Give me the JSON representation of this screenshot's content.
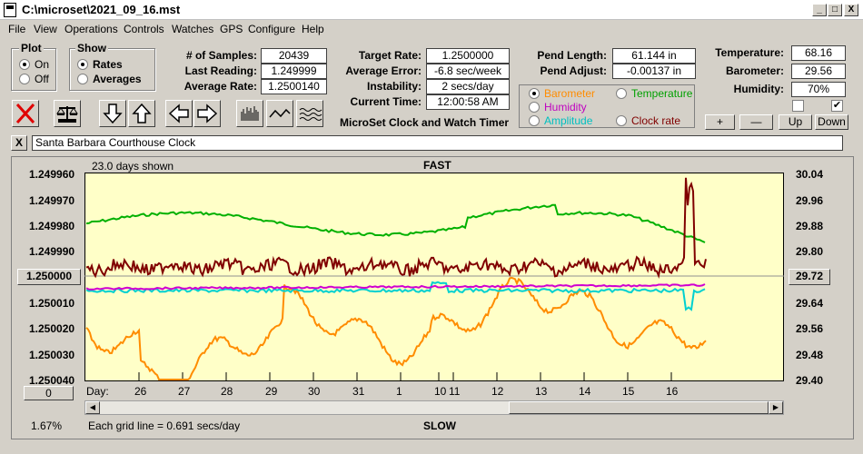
{
  "window": {
    "title": "C:\\microset\\2021_09_16.mst",
    "min": "_",
    "max": "□",
    "close": "X"
  },
  "menu": [
    "File",
    "View",
    "Operations",
    "Controls",
    "Watches",
    "GPS",
    "Configure",
    "Help"
  ],
  "plot_group": {
    "label": "Plot",
    "on": "On",
    "off": "Off",
    "selected": "On"
  },
  "show_group": {
    "label": "Show",
    "rates": "Rates",
    "averages": "Averages",
    "selected": "Rates"
  },
  "stats": {
    "samples_label": "# of Samples:",
    "samples": "20439",
    "last_label": "Last Reading:",
    "last": "1.249999",
    "avg_rate_label": "Average Rate:",
    "avg_rate": "1.2500140",
    "target_label": "Target Rate:",
    "target": "1.2500000",
    "avg_err_label": "Average Error:",
    "avg_err": "-6.8 sec/week",
    "instab_label": "Instability:",
    "instab": "2 secs/day",
    "time_label": "Current Time:",
    "time": "12:00:58 AM",
    "pend_len_label": "Pend Length:",
    "pend_len": "61.144 in",
    "pend_adj_label": "Pend Adjust:",
    "pend_adj": "-0.00137 in",
    "temp_label": "Temperature:",
    "temp": "68.16",
    "baro_label": "Barometer:",
    "baro": "29.56",
    "hum_label": "Humidity:",
    "hum": "70%"
  },
  "subtitle": "MicroSet Clock and Watch Timer",
  "sensors": {
    "barometer": "Barometer",
    "temperature": "Temperature",
    "humidity": "Humidity",
    "amplitude": "Amplitude",
    "clock_rate": "Clock rate",
    "selected": "Barometer",
    "colors": {
      "barometer": "#ff8c00",
      "temperature": "#00a000",
      "humidity": "#c000c0",
      "amplitude": "#00c0c0",
      "clock_rate": "#800000"
    }
  },
  "adjust_buttons": {
    "plus": "+",
    "minus": "—",
    "up": "Up",
    "down": "Down"
  },
  "checkbox_right": "✔",
  "clock_name": "Santa Barbara Courthouse Clock",
  "close_x": "X",
  "plot": {
    "days_shown": "23.0 days shown",
    "fast": "FAST",
    "slow": "SLOW",
    "grid_note": "Each grid line = 0.691 secs/day",
    "percent": "1.67%",
    "left_center_value": "1.250000",
    "right_center_value": "29.72",
    "left_bottom_btn": "0",
    "day_label": "Day:",
    "days": [
      "26",
      "27",
      "28",
      "29",
      "30",
      "31",
      "1",
      "10",
      "11",
      "12",
      "13",
      "14",
      "15",
      "16"
    ],
    "left_axis": [
      "1.249960",
      "1.249970",
      "1.249980",
      "1.249990",
      "1.250010",
      "1.250020",
      "1.250030",
      "1.250040"
    ],
    "right_axis": [
      "30.04",
      "29.96",
      "29.88",
      "29.80",
      "29.64",
      "29.56",
      "29.48",
      "29.40"
    ]
  }
}
